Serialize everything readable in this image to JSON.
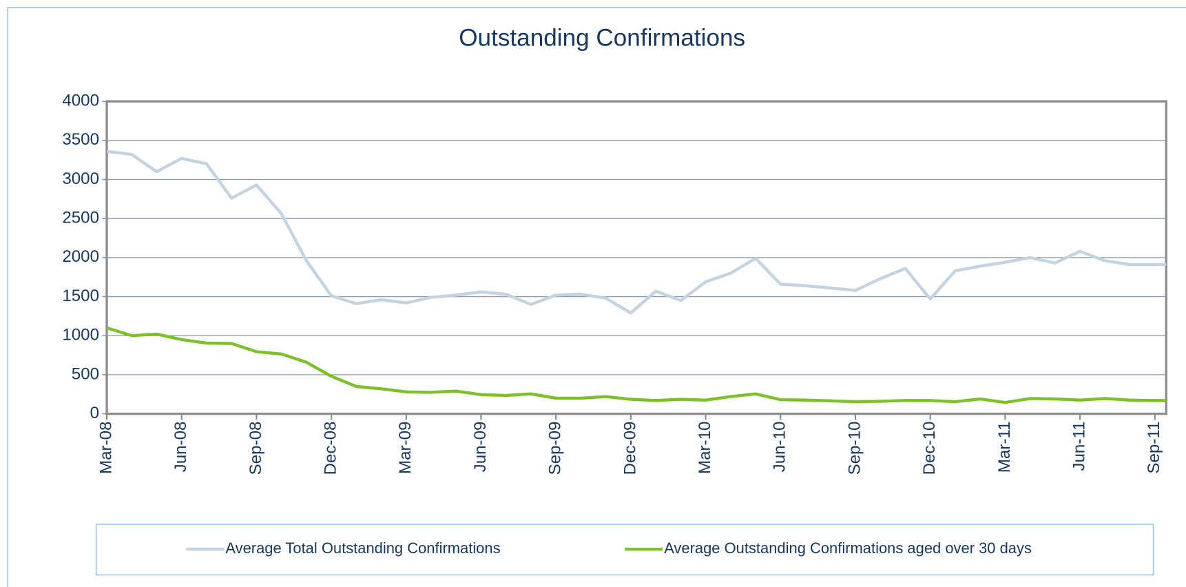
{
  "chart_data": {
    "type": "line",
    "title": "Outstanding Confirmations",
    "categories": [
      "Mar-08",
      null,
      null,
      "Jun-08",
      null,
      null,
      "Sep-08",
      null,
      null,
      "Dec-08",
      null,
      null,
      "Mar-09",
      null,
      null,
      "Jun-09",
      null,
      null,
      "Sep-09",
      null,
      null,
      "Dec-09",
      null,
      null,
      "Mar-10",
      null,
      null,
      "Jun-10",
      null,
      null,
      "Sep-10",
      null,
      null,
      "Dec-10",
      null,
      null,
      "Mar-11",
      null,
      null,
      "Jun-11",
      null,
      null,
      "Sep-11",
      null
    ],
    "series": [
      {
        "name": "Average Total Outstanding Confirmations",
        "color": "#c3d3e2",
        "values": [
          3360,
          3320,
          3100,
          3270,
          3200,
          2760,
          2930,
          2560,
          1960,
          1510,
          1410,
          1460,
          1420,
          1490,
          1520,
          1560,
          1530,
          1400,
          1520,
          1530,
          1480,
          1290,
          1570,
          1450,
          1690,
          1800,
          1990,
          1660,
          1640,
          1610,
          1580,
          1730,
          1860,
          1470,
          1830,
          1890,
          1940,
          2000,
          1930,
          2080,
          1960,
          1910,
          1910,
          1915
        ]
      },
      {
        "name": "Average Outstanding Confirmations aged over 30 days",
        "color": "#7dc02a",
        "values": [
          1100,
          1000,
          1020,
          950,
          905,
          900,
          795,
          765,
          660,
          480,
          350,
          320,
          280,
          275,
          290,
          245,
          235,
          255,
          200,
          200,
          220,
          185,
          170,
          185,
          175,
          220,
          255,
          180,
          175,
          165,
          155,
          160,
          170,
          170,
          155,
          190,
          145,
          195,
          190,
          175,
          195,
          175,
          170,
          168
        ]
      }
    ],
    "ylim": [
      0,
      4000
    ],
    "yticks": [
      0,
      500,
      1000,
      1500,
      2000,
      2500,
      3000,
      3500,
      4000
    ],
    "grid": true,
    "legend": "bottom"
  }
}
